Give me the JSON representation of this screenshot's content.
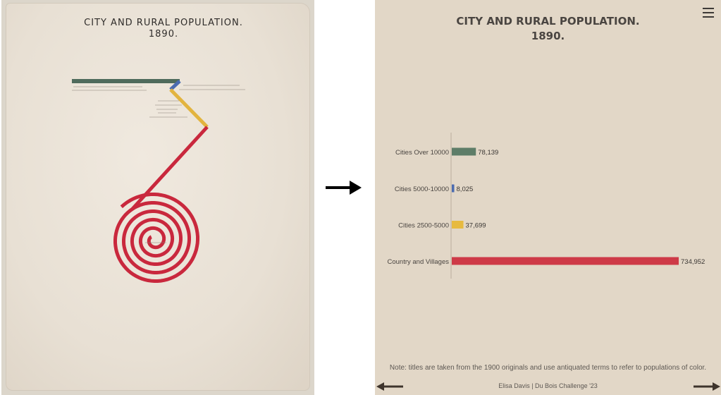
{
  "original": {
    "title_line1": "CITY AND RURAL POPULATION.",
    "title_line2": "1890.",
    "colors": {
      "green": "#4f6b5c",
      "blue": "#4b6bb0",
      "gold": "#e2b43f",
      "red": "#c9283d"
    }
  },
  "navigation": {
    "arrow_icon": "right-arrow-icon",
    "menu_icon": "hamburger-menu-icon",
    "prev_icon": "previous-arrow-icon",
    "next_icon": "next-arrow-icon"
  },
  "viz": {
    "title_line1": "CITY AND RURAL POPULATION.",
    "title_line2": "1890.",
    "note": "Note: titles are taken from the 1900 originals and use antiquated terms to refer to populations of color.",
    "credit": "Elisa Davis | Du Bois Challenge '23"
  },
  "chart_data": {
    "type": "bar",
    "orientation": "horizontal",
    "title": "CITY AND RURAL POPULATION. 1890.",
    "categories": [
      "Cities Over 10000",
      "Cities 5000-10000",
      "Cities 2500-5000",
      "Country and Villages"
    ],
    "values": [
      78139,
      8025,
      37699,
      734952
    ],
    "value_labels": [
      "78,139",
      "8,025",
      "37,699",
      "734,952"
    ],
    "colors": [
      "#5e7d68",
      "#4b6bb0",
      "#e7ba40",
      "#ce3a47"
    ],
    "xlim": [
      0,
      734952
    ],
    "grid": false
  }
}
